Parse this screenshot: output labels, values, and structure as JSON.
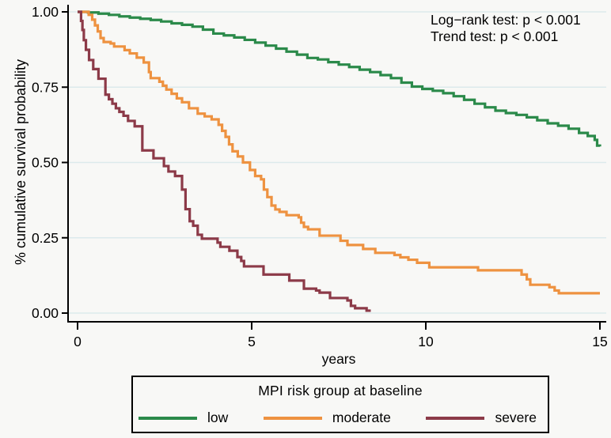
{
  "figure": {
    "y_axis_title": "% cumulative survival probability",
    "x_axis_title": "years"
  },
  "legend": {
    "title": "MPI risk group at baseline",
    "items": [
      {
        "label": "low",
        "color": "#2b8a4a"
      },
      {
        "label": "moderate",
        "color": "#ee9240"
      },
      {
        "label": "severe",
        "color": "#8c3a48"
      }
    ]
  },
  "colors": {
    "background": "#f8f8f6",
    "grid": "#dceaec",
    "axis": "#000000",
    "text": "#000000",
    "low": "#2b8a4a",
    "moderate": "#ee9240",
    "severe": "#8c3a48"
  },
  "chart_data": {
    "type": "line",
    "subtype": "kaplan-meier-step",
    "title": "",
    "xlabel": "years",
    "ylabel": "% cumulative survival probability",
    "xlim": [
      0,
      15
    ],
    "ylim": [
      0,
      1
    ],
    "x_ticks": [
      0,
      5,
      10,
      15
    ],
    "x_tick_labels": [
      "0",
      "5",
      "10",
      "15"
    ],
    "y_ticks": [
      0,
      0.25,
      0.5,
      0.75,
      1
    ],
    "y_tick_labels": [
      "0.00",
      "0.25",
      "0.50",
      "0.75",
      "1.00"
    ],
    "grid": true,
    "legend_position": "bottom",
    "annotations": [
      "Log−rank test: p < 0.001",
      "Trend test: p < 0.001"
    ],
    "series": [
      {
        "name": "low",
        "color": "#2b8a4a",
        "points": [
          [
            0,
            1.0
          ],
          [
            0.3,
            0.998
          ],
          [
            0.6,
            0.994
          ],
          [
            0.9,
            0.99
          ],
          [
            1.2,
            0.985
          ],
          [
            1.5,
            0.981
          ],
          [
            1.8,
            0.977
          ],
          [
            2.1,
            0.973
          ],
          [
            2.4,
            0.968
          ],
          [
            2.7,
            0.962
          ],
          [
            3.0,
            0.957
          ],
          [
            3.3,
            0.951
          ],
          [
            3.6,
            0.941
          ],
          [
            3.9,
            0.928
          ],
          [
            4.2,
            0.922
          ],
          [
            4.5,
            0.915
          ],
          [
            4.8,
            0.907
          ],
          [
            5.1,
            0.898
          ],
          [
            5.4,
            0.888
          ],
          [
            5.7,
            0.878
          ],
          [
            6.0,
            0.868
          ],
          [
            6.3,
            0.858
          ],
          [
            6.6,
            0.847
          ],
          [
            6.9,
            0.842
          ],
          [
            7.2,
            0.833
          ],
          [
            7.5,
            0.825
          ],
          [
            7.8,
            0.817
          ],
          [
            8.1,
            0.808
          ],
          [
            8.4,
            0.8
          ],
          [
            8.7,
            0.79
          ],
          [
            9.0,
            0.78
          ],
          [
            9.3,
            0.765
          ],
          [
            9.6,
            0.752
          ],
          [
            9.9,
            0.744
          ],
          [
            10.2,
            0.738
          ],
          [
            10.5,
            0.73
          ],
          [
            10.8,
            0.72
          ],
          [
            11.1,
            0.708
          ],
          [
            11.4,
            0.695
          ],
          [
            11.7,
            0.683
          ],
          [
            12.0,
            0.672
          ],
          [
            12.3,
            0.664
          ],
          [
            12.6,
            0.658
          ],
          [
            12.9,
            0.65
          ],
          [
            13.2,
            0.64
          ],
          [
            13.5,
            0.63
          ],
          [
            13.8,
            0.622
          ],
          [
            14.1,
            0.612
          ],
          [
            14.4,
            0.598
          ],
          [
            14.65,
            0.588
          ],
          [
            14.85,
            0.575
          ],
          [
            14.92,
            0.556
          ],
          [
            15.0,
            0.553
          ]
        ]
      },
      {
        "name": "moderate",
        "color": "#ee9240",
        "points": [
          [
            0,
            1.0
          ],
          [
            0.28,
            1.0
          ],
          [
            0.32,
            0.99
          ],
          [
            0.42,
            0.974
          ],
          [
            0.5,
            0.955
          ],
          [
            0.58,
            0.935
          ],
          [
            0.66,
            0.913
          ],
          [
            0.75,
            0.9
          ],
          [
            0.95,
            0.895
          ],
          [
            1.05,
            0.885
          ],
          [
            1.35,
            0.873
          ],
          [
            1.5,
            0.862
          ],
          [
            1.7,
            0.848
          ],
          [
            1.9,
            0.832
          ],
          [
            2.05,
            0.8
          ],
          [
            2.1,
            0.78
          ],
          [
            2.35,
            0.768
          ],
          [
            2.45,
            0.755
          ],
          [
            2.55,
            0.742
          ],
          [
            2.7,
            0.728
          ],
          [
            2.85,
            0.713
          ],
          [
            3.0,
            0.7
          ],
          [
            3.2,
            0.68
          ],
          [
            3.45,
            0.662
          ],
          [
            3.65,
            0.653
          ],
          [
            3.85,
            0.643
          ],
          [
            4.05,
            0.625
          ],
          [
            4.15,
            0.605
          ],
          [
            4.25,
            0.585
          ],
          [
            4.35,
            0.56
          ],
          [
            4.45,
            0.537
          ],
          [
            4.6,
            0.52
          ],
          [
            4.75,
            0.5
          ],
          [
            4.95,
            0.475
          ],
          [
            5.1,
            0.455
          ],
          [
            5.27,
            0.444
          ],
          [
            5.35,
            0.41
          ],
          [
            5.45,
            0.385
          ],
          [
            5.57,
            0.357
          ],
          [
            5.68,
            0.344
          ],
          [
            5.8,
            0.336
          ],
          [
            6.0,
            0.325
          ],
          [
            6.35,
            0.318
          ],
          [
            6.42,
            0.3
          ],
          [
            6.5,
            0.286
          ],
          [
            6.62,
            0.278
          ],
          [
            6.95,
            0.257
          ],
          [
            7.55,
            0.24
          ],
          [
            7.75,
            0.226
          ],
          [
            8.2,
            0.213
          ],
          [
            8.55,
            0.2
          ],
          [
            9.1,
            0.193
          ],
          [
            9.27,
            0.185
          ],
          [
            9.5,
            0.177
          ],
          [
            9.75,
            0.167
          ],
          [
            10.1,
            0.152
          ],
          [
            11.5,
            0.142
          ],
          [
            12.75,
            0.128
          ],
          [
            12.9,
            0.112
          ],
          [
            13.0,
            0.094
          ],
          [
            13.55,
            0.086
          ],
          [
            13.7,
            0.075
          ],
          [
            13.82,
            0.066
          ],
          [
            15.0,
            0.066
          ]
        ]
      },
      {
        "name": "severe",
        "color": "#8c3a48",
        "points": [
          [
            0,
            1.0
          ],
          [
            0.08,
            1.0
          ],
          [
            0.1,
            0.97
          ],
          [
            0.14,
            0.94
          ],
          [
            0.18,
            0.906
          ],
          [
            0.24,
            0.874
          ],
          [
            0.33,
            0.84
          ],
          [
            0.45,
            0.81
          ],
          [
            0.6,
            0.778
          ],
          [
            0.8,
            0.725
          ],
          [
            0.9,
            0.71
          ],
          [
            1.0,
            0.695
          ],
          [
            1.1,
            0.68
          ],
          [
            1.2,
            0.668
          ],
          [
            1.32,
            0.655
          ],
          [
            1.45,
            0.638
          ],
          [
            1.64,
            0.62
          ],
          [
            1.86,
            0.54
          ],
          [
            2.18,
            0.514
          ],
          [
            2.48,
            0.488
          ],
          [
            2.61,
            0.47
          ],
          [
            2.8,
            0.455
          ],
          [
            3.0,
            0.41
          ],
          [
            3.1,
            0.345
          ],
          [
            3.22,
            0.305
          ],
          [
            3.32,
            0.29
          ],
          [
            3.45,
            0.26
          ],
          [
            3.57,
            0.247
          ],
          [
            4.02,
            0.234
          ],
          [
            4.1,
            0.22
          ],
          [
            4.36,
            0.207
          ],
          [
            4.59,
            0.186
          ],
          [
            4.7,
            0.173
          ],
          [
            4.78,
            0.155
          ],
          [
            5.34,
            0.128
          ],
          [
            6.08,
            0.108
          ],
          [
            6.5,
            0.081
          ],
          [
            6.85,
            0.075
          ],
          [
            6.95,
            0.068
          ],
          [
            7.25,
            0.05
          ],
          [
            7.75,
            0.042
          ],
          [
            7.85,
            0.024
          ],
          [
            7.97,
            0.016
          ],
          [
            8.3,
            0.008
          ],
          [
            8.42,
            0.008
          ]
        ]
      }
    ]
  }
}
